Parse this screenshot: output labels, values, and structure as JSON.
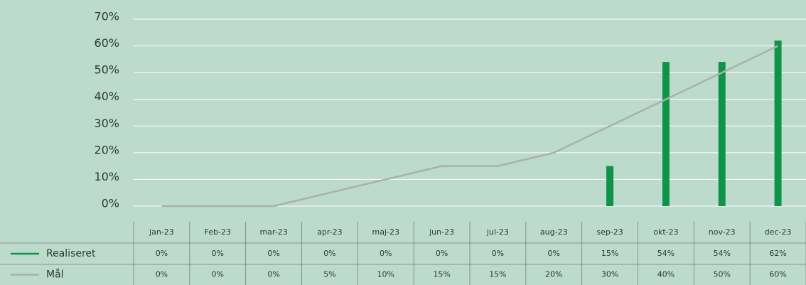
{
  "chart_data": {
    "type": "bar",
    "categories": [
      "jan-23",
      "Feb-23",
      "mar-23",
      "apr-23",
      "maj-23",
      "jun-23",
      "jul-23",
      "aug-23",
      "sep-23",
      "okt-23",
      "nov-23",
      "dec-23"
    ],
    "series": [
      {
        "name": "Realiseret",
        "type": "bar",
        "color": "#0e9448",
        "values": [
          0,
          0,
          0,
          0,
          0,
          0,
          0,
          0,
          15,
          54,
          54,
          62
        ],
        "value_labels": [
          "0%",
          "0%",
          "0%",
          "0%",
          "0%",
          "0%",
          "0%",
          "0%",
          "15%",
          "54%",
          "54%",
          "62%"
        ]
      },
      {
        "name": "Mål",
        "type": "line",
        "color": "#a9b1ad",
        "values": [
          0,
          0,
          0,
          5,
          10,
          15,
          15,
          20,
          30,
          40,
          50,
          60
        ],
        "value_labels": [
          "0%",
          "0%",
          "0%",
          "5%",
          "10%",
          "15%",
          "15%",
          "20%",
          "30%",
          "40%",
          "50%",
          "60%"
        ]
      }
    ],
    "ylim": [
      0,
      70
    ],
    "yticks": [
      {
        "value": 0,
        "label": "0%"
      },
      {
        "value": 10,
        "label": "10%"
      },
      {
        "value": 20,
        "label": "20%"
      },
      {
        "value": 30,
        "label": "30%"
      },
      {
        "value": 40,
        "label": "40%"
      },
      {
        "value": 50,
        "label": "50%"
      },
      {
        "value": 60,
        "label": "60%"
      },
      {
        "value": 70,
        "label": "70%"
      }
    ],
    "grid": true
  }
}
